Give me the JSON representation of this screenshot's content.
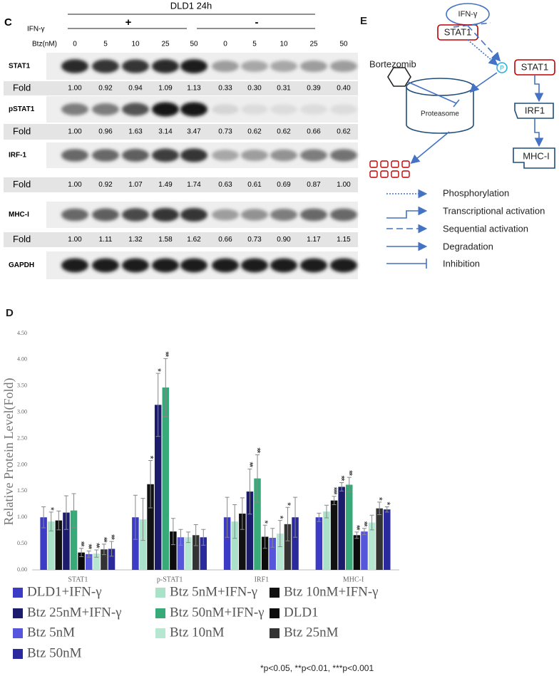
{
  "blot": {
    "panel": "C",
    "title": "DLD1 24h",
    "ifn_label": "IFN-γ",
    "groups": [
      "+",
      "-"
    ],
    "btz_label": "Btz(nM)",
    "doses": [
      "0",
      "5",
      "10",
      "25",
      "50",
      "0",
      "5",
      "10",
      "25",
      "50"
    ],
    "rows": [
      {
        "name": "STAT1",
        "fold_label": "Fold",
        "fold": [
          "1.00",
          "0.92",
          "0.94",
          "1.09",
          "1.13",
          "0.33",
          "0.30",
          "0.31",
          "0.39",
          "0.40"
        ]
      },
      {
        "name": "pSTAT1",
        "fold_label": "Fold",
        "fold": [
          "1.00",
          "0.96",
          "1.63",
          "3.14",
          "3.47",
          "0.73",
          "0.62",
          "0.62",
          "0.66",
          "0.62"
        ]
      },
      {
        "name": "IRF-1",
        "fold_label": "Fold",
        "fold": [
          "1.00",
          "0.92",
          "1.07",
          "1.49",
          "1.74",
          "0.63",
          "0.61",
          "0.69",
          "0.87",
          "1.00"
        ]
      },
      {
        "name": "MHC-I",
        "fold_label": "Fold",
        "fold": [
          "1.00",
          "1.11",
          "1.32",
          "1.58",
          "1.62",
          "0.66",
          "0.73",
          "0.90",
          "1.17",
          "1.15"
        ]
      },
      {
        "name": "GAPDH"
      }
    ]
  },
  "diagram": {
    "panel": "E",
    "ifn": "IFN-γ",
    "stat1": "STAT1",
    "bortezomib": "Bortezomib",
    "p": "P",
    "pstat1": "STAT1",
    "proteasome": "Proteasome",
    "irf1": "IRF1",
    "mhc": "MHC-I",
    "legend": [
      "Phosphorylation",
      "Transcriptional activation",
      "Sequential activation",
      "Degradation",
      "Inhibition"
    ]
  },
  "panel_d": "D",
  "footnote": "*p<0.05, **p<0.01, ***p<0.001",
  "chart_data": {
    "type": "bar",
    "y_label": "Relative Protein Level(Fold)",
    "categories": [
      "STAT1",
      "p-STAT1",
      "IRF1",
      "MHC-I"
    ],
    "ylim": [
      0,
      4.5
    ],
    "yticks": [
      {
        "value": 0,
        "label": "0.00"
      },
      {
        "value": 0.5,
        "label": "0.50"
      },
      {
        "value": 1,
        "label": "1.00"
      },
      {
        "value": 1.5,
        "label": "1.50"
      },
      {
        "value": 2,
        "label": "2.00"
      },
      {
        "value": 2.5,
        "label": "2.50"
      },
      {
        "value": 3,
        "label": "3.00"
      },
      {
        "value": 3.5,
        "label": "3.50"
      },
      {
        "value": 4,
        "label": "4.00"
      },
      {
        "value": 4.5,
        "label": "4.50"
      }
    ],
    "series": [
      {
        "name": "DLD1+IFN-γ",
        "color": "#3b3bc6",
        "values": [
          1.0,
          1.0,
          1.0,
          1.0
        ],
        "errors": [
          0.2,
          0.42,
          0.38,
          0.08
        ],
        "stars": [
          null,
          null,
          null,
          null
        ]
      },
      {
        "name": "Btz 5nM+IFN-γ",
        "color": "#a9e2c9",
        "values": [
          0.92,
          0.96,
          0.92,
          1.11
        ],
        "errors": [
          0.18,
          0.4,
          0.32,
          0.12
        ],
        "stars": [
          "*",
          null,
          null,
          null
        ]
      },
      {
        "name": "Btz 10nM+IFN-γ",
        "color": "#111111",
        "values": [
          0.94,
          1.63,
          1.07,
          1.32
        ],
        "errors": [
          0.18,
          0.45,
          0.3,
          0.08
        ],
        "stars": [
          null,
          "*",
          null,
          "***"
        ]
      },
      {
        "name": "Btz 25nM+IFN-γ",
        "color": "#1c1c6c",
        "values": [
          1.09,
          3.14,
          1.49,
          1.58
        ],
        "errors": [
          0.32,
          0.6,
          0.43,
          0.08
        ],
        "stars": [
          null,
          "*",
          "**",
          "**"
        ]
      },
      {
        "name": "Btz 50nM+IFN-γ",
        "color": "#38a978",
        "values": [
          1.13,
          3.47,
          1.74,
          1.62
        ],
        "errors": [
          0.32,
          0.55,
          0.45,
          0.14
        ],
        "stars": [
          null,
          "**",
          "**",
          "**"
        ]
      },
      {
        "name": "DLD1",
        "color": "#0c0c0c",
        "values": [
          0.33,
          0.73,
          0.63,
          0.66
        ],
        "errors": [
          0.08,
          0.25,
          0.22,
          0.06
        ],
        "stars": [
          "**",
          null,
          "*",
          "**"
        ]
      },
      {
        "name": "Btz 5nM",
        "color": "#5656dc",
        "values": [
          0.3,
          0.62,
          0.61,
          0.73
        ],
        "errors": [
          0.06,
          0.15,
          0.18,
          0.06
        ],
        "stars": [
          "**",
          null,
          null,
          "**"
        ]
      },
      {
        "name": "Btz 10nM",
        "color": "#b6e7d1",
        "values": [
          0.31,
          0.62,
          0.69,
          0.9
        ],
        "errors": [
          0.07,
          0.1,
          0.25,
          0.14
        ],
        "stars": [
          "**",
          null,
          "*",
          null
        ]
      },
      {
        "name": "Btz 25nM",
        "color": "#333333",
        "values": [
          0.39,
          0.66,
          0.87,
          1.17
        ],
        "errors": [
          0.1,
          0.2,
          0.32,
          0.12
        ],
        "stars": [
          "**",
          null,
          "*",
          "*"
        ]
      },
      {
        "name": "Btz 50nM",
        "color": "#2a2a9c",
        "values": [
          0.4,
          0.62,
          1.0,
          1.15
        ],
        "errors": [
          0.14,
          0.15,
          0.38,
          0.05
        ],
        "stars": [
          "**",
          null,
          null,
          "*"
        ]
      }
    ]
  }
}
